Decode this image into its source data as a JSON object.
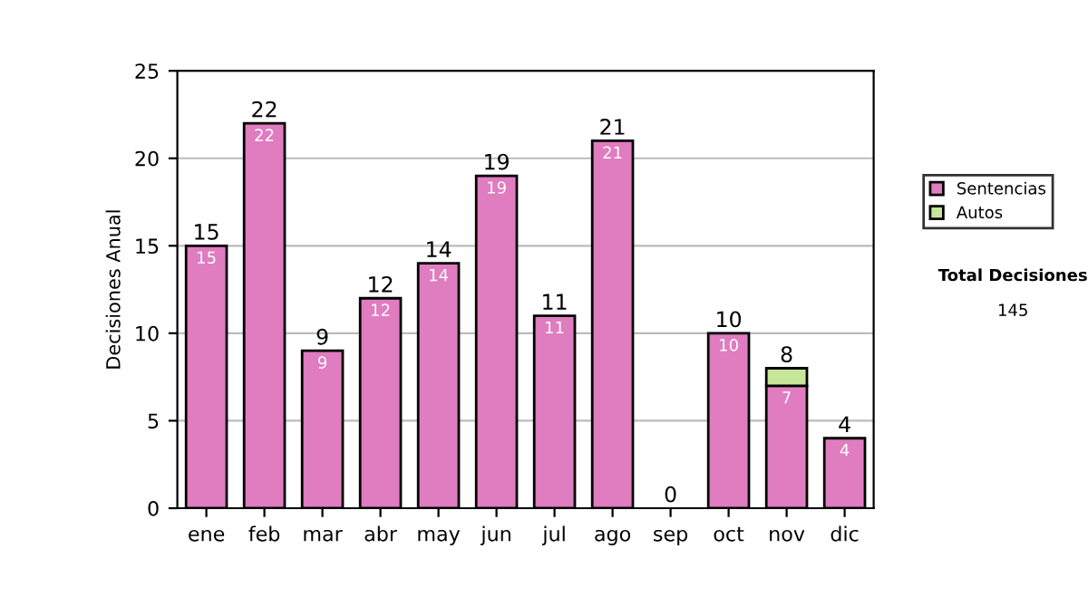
{
  "chart_data": {
    "type": "bar",
    "stacked": true,
    "ylabel": "Decisiones Anual",
    "categories": [
      "ene",
      "feb",
      "mar",
      "abr",
      "may",
      "jun",
      "jul",
      "ago",
      "sep",
      "oct",
      "nov",
      "dic"
    ],
    "series": [
      {
        "name": "Sentencias",
        "color": "#e07cc0",
        "values": [
          15,
          22,
          9,
          12,
          14,
          19,
          11,
          21,
          0,
          10,
          7,
          4
        ],
        "value_labels": [
          "15",
          "22",
          "9",
          "12",
          "14",
          "19",
          "11",
          "21",
          null,
          "10",
          "7",
          "4"
        ]
      },
      {
        "name": "Autos",
        "color": "#c8e698",
        "values": [
          0,
          0,
          0,
          0,
          0,
          0,
          0,
          0,
          0,
          0,
          1,
          0
        ]
      }
    ],
    "totals": [
      "15",
      "22",
      "9",
      "12",
      "14",
      "19",
      "11",
      "21",
      "0",
      "10",
      "8",
      "4"
    ],
    "ylim": [
      0,
      25
    ],
    "yticks": [
      0,
      5,
      10,
      15,
      20,
      25
    ],
    "grid": "y",
    "legend": "right",
    "annotations": [
      "Total Decisiones",
      "145"
    ]
  }
}
